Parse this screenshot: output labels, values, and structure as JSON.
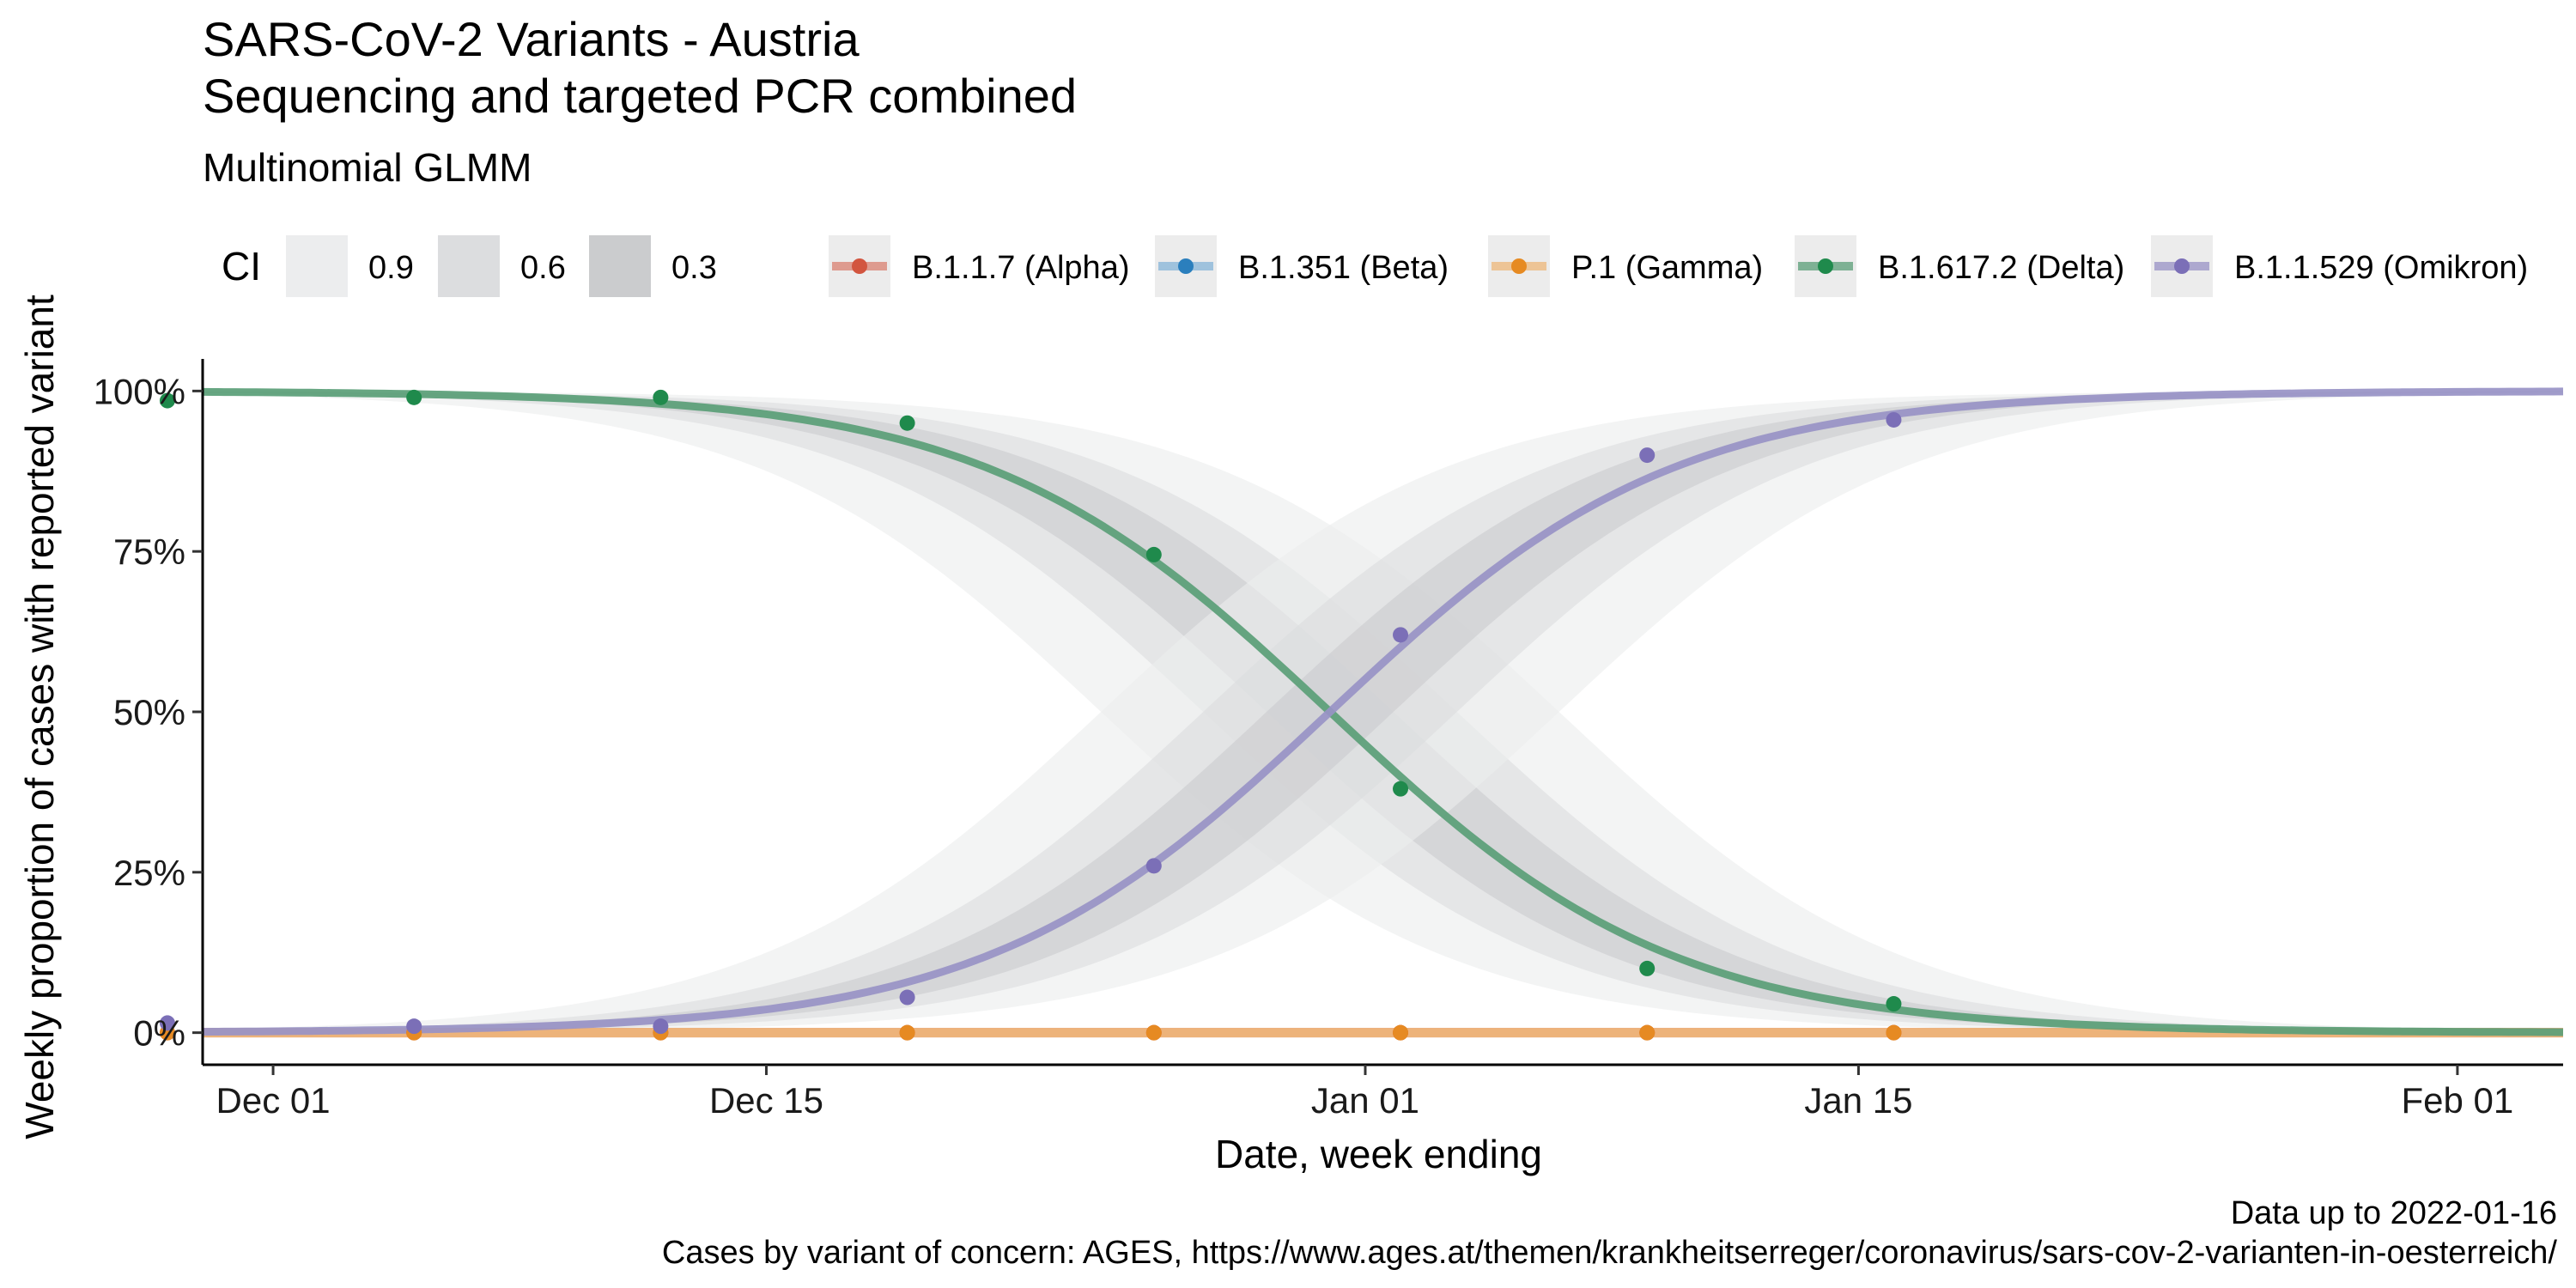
{
  "header": {
    "title_line1": "SARS-CoV-2 Variants - Austria",
    "title_line2": "Sequencing and targeted PCR combined",
    "subtitle": "Multinomial GLMM"
  },
  "caption": {
    "line1": "Data up to 2022-01-16",
    "line2": "Cases by variant of concern: AGES, https://www.ages.at/themen/krankheitserreger/coronavirus/sars-cov-2-varianten-in-oesterreich/"
  },
  "chart_data": {
    "type": "line",
    "xlabel": "Date, week ending",
    "ylabel": "Weekly proportion of cases with reported variant",
    "x_axis": {
      "range": [
        "2021-11-29",
        "2022-02-04"
      ],
      "ticks": [
        {
          "date": "2021-12-01",
          "label": "Dec 01"
        },
        {
          "date": "2021-12-15",
          "label": "Dec 15"
        },
        {
          "date": "2022-01-01",
          "label": "Jan 01"
        },
        {
          "date": "2022-01-15",
          "label": "Jan 15"
        },
        {
          "date": "2022-02-01",
          "label": "Feb 01"
        }
      ]
    },
    "y_axis": {
      "range": [
        -0.05,
        1.05
      ],
      "ticks": [
        {
          "value": 0,
          "label": "0%"
        },
        {
          "value": 0.25,
          "label": "25%"
        },
        {
          "value": 0.5,
          "label": "50%"
        },
        {
          "value": 0.75,
          "label": "75%"
        },
        {
          "value": 1,
          "label": "100%"
        }
      ]
    },
    "grid": false,
    "legend": {
      "position": "top",
      "ci_title": "CI",
      "ci_levels": [
        "0.9",
        "0.6",
        "0.3"
      ],
      "ci_colors": [
        "#ecedee",
        "#dcdddf",
        "#cbccce"
      ]
    },
    "ci_bands": {
      "levels": [
        "0.9",
        "0.6",
        "0.3"
      ],
      "omikron_midpoint_date": "2021-12-31",
      "omikron_midpoint_halfwidth_days": [
        6.5,
        3.6,
        1.8
      ],
      "delta_midpoint_date": "2021-12-31",
      "delta_midpoint_halfwidth_days": [
        6.5,
        3.6,
        1.8
      ]
    },
    "fit_curves": [
      {
        "name": "B.1.617.2 (Delta)",
        "shape": "falling",
        "midpoint": "2021-12-31",
        "growth_per_day": 0.205
      },
      {
        "name": "B.1.1.529 (Omikron)",
        "shape": "rising",
        "midpoint": "2021-12-31",
        "growth_per_day": 0.205
      }
    ],
    "series": [
      {
        "name": "B.1.1.7 (Alpha)",
        "color": "#d2553f",
        "line_color": "#d98070",
        "points": [
          {
            "x": "2021-11-28",
            "y": 0
          },
          {
            "x": "2021-12-05",
            "y": 0
          },
          {
            "x": "2021-12-12",
            "y": 0
          },
          {
            "x": "2021-12-19",
            "y": 0
          },
          {
            "x": "2021-12-26",
            "y": 0
          },
          {
            "x": "2022-01-02",
            "y": 0
          },
          {
            "x": "2022-01-09",
            "y": 0
          },
          {
            "x": "2022-01-16",
            "y": 0
          }
        ]
      },
      {
        "name": "B.1.351 (Beta)",
        "color": "#2b7fbd",
        "line_color": "#86b4d8",
        "points": []
      },
      {
        "name": "P.1 (Gamma)",
        "color": "#e68a22",
        "line_color": "#eeb77a",
        "points": [
          {
            "x": "2021-11-28",
            "y": 0
          },
          {
            "x": "2021-12-05",
            "y": 0
          },
          {
            "x": "2021-12-12",
            "y": 0
          },
          {
            "x": "2021-12-19",
            "y": 0
          },
          {
            "x": "2021-12-26",
            "y": 0
          },
          {
            "x": "2022-01-02",
            "y": 0
          },
          {
            "x": "2022-01-09",
            "y": 0
          },
          {
            "x": "2022-01-16",
            "y": 0
          }
        ]
      },
      {
        "name": "B.1.617.2 (Delta)",
        "color": "#1f8a4c",
        "line_color": "#5a9e77",
        "points": [
          {
            "x": "2021-11-28",
            "y": 0.985
          },
          {
            "x": "2021-12-05",
            "y": 0.99
          },
          {
            "x": "2021-12-12",
            "y": 0.99
          },
          {
            "x": "2021-12-19",
            "y": 0.95
          },
          {
            "x": "2021-12-26",
            "y": 0.745
          },
          {
            "x": "2022-01-02",
            "y": 0.38
          },
          {
            "x": "2022-01-09",
            "y": 0.1
          },
          {
            "x": "2022-01-16",
            "y": 0.045
          }
        ]
      },
      {
        "name": "B.1.1.529 (Omikron)",
        "color": "#7b6fb7",
        "line_color": "#9892c6",
        "points": [
          {
            "x": "2021-11-28",
            "y": 0.015
          },
          {
            "x": "2021-12-05",
            "y": 0.01
          },
          {
            "x": "2021-12-12",
            "y": 0.01
          },
          {
            "x": "2021-12-19",
            "y": 0.055
          },
          {
            "x": "2021-12-26",
            "y": 0.26
          },
          {
            "x": "2022-01-02",
            "y": 0.62
          },
          {
            "x": "2022-01-09",
            "y": 0.9
          },
          {
            "x": "2022-01-16",
            "y": 0.955
          }
        ]
      }
    ]
  }
}
